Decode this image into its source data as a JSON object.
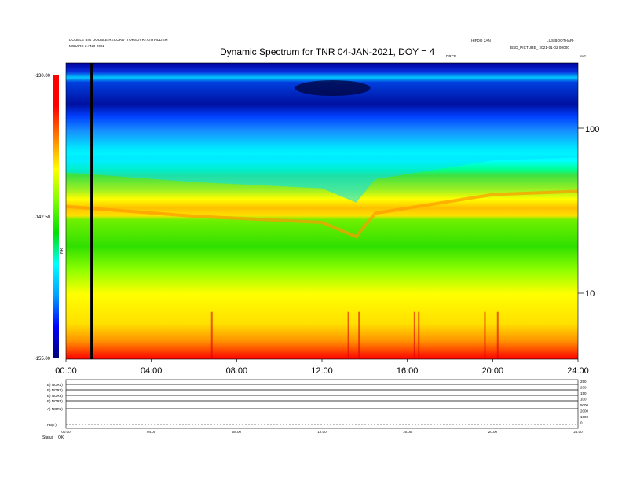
{
  "header": {
    "title": "Dynamic Spectrum for TNR 04-JAN-2021, DOY = 4",
    "left_line1": "DOUBLE BIG DOUBLE RECORD (TOKSOVR) ATRIALLISM",
    "left_line2": "MGUIRE 2 AND 2022",
    "center_small": "HIFDO 2AN",
    "center_small2": "DRCE",
    "right_small1": "LUS BOOTHAR-",
    "right_small2": "BSD_PICTURE_ 2021-01-02 00000",
    "right_units": "kHz"
  },
  "chart_data": {
    "type": "heatmap",
    "title": "Dynamic Spectrum for TNR 04-JAN-2021, DOY = 4",
    "x_ticks": [
      "00:00",
      "04:00",
      "08:00",
      "12:00",
      "16:00",
      "20:00",
      "24:00"
    ],
    "x_range": [
      0,
      24
    ],
    "y_scale": "log",
    "y_range_khz": [
      4,
      256
    ],
    "y_tick_labels": [
      "100",
      "10"
    ],
    "colorbar": {
      "label": "TNR",
      "tick_labels": [
        "-130.00",
        "-142.50",
        "-155.00"
      ],
      "range": [
        -155,
        -130
      ],
      "colormap": [
        "#00007a",
        "#0000ff",
        "#00a0ff",
        "#00ffff",
        "#00e000",
        "#80ff00",
        "#ffff00",
        "#ff8000",
        "#ff0000",
        "#ff0000"
      ]
    },
    "marker_line_hour": 1.2,
    "features": [
      {
        "hour": 0.0,
        "transition_khz": 55
      },
      {
        "hour": 6.0,
        "transition_khz": 48
      },
      {
        "hour": 12.0,
        "transition_khz": 44
      },
      {
        "hour": 13.6,
        "transition_khz": 36
      },
      {
        "hour": 14.5,
        "transition_khz": 50
      },
      {
        "hour": 20.0,
        "transition_khz": 65
      },
      {
        "hour": 24.0,
        "transition_khz": 68
      }
    ]
  },
  "panels": {
    "labels": [
      "B) NOR1)",
      "E) NOR2)",
      "E) NOR3)",
      "E) NOR4)",
      "A) NOR5)",
      "PB(T)"
    ],
    "right_labels": [
      "250",
      "200",
      "150",
      "100",
      "5000",
      "2000",
      "1000",
      "0"
    ],
    "x_ticks": [
      "00:00",
      "04:00",
      "08:00",
      "12:00",
      "16:00",
      "20:00",
      "24:00"
    ],
    "status_label": "Status",
    "status_value": "OK"
  }
}
